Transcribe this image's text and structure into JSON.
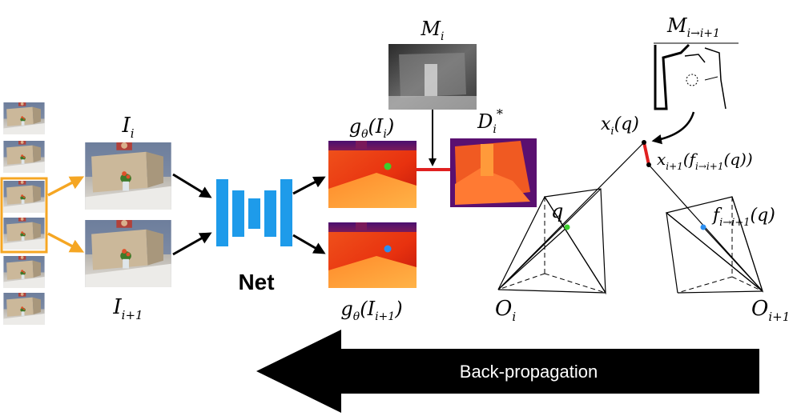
{
  "labels": {
    "I_i": {
      "base": "I",
      "sub": "i"
    },
    "I_i1": {
      "base": "I",
      "sub": "i+1"
    },
    "net": "Net",
    "g_i": {
      "func": "g",
      "sub": "θ",
      "open": "(",
      "arg": "I",
      "argsub": "i",
      "close": ")"
    },
    "g_i1": {
      "func": "g",
      "sub": "θ",
      "open": "(",
      "arg": "I",
      "argsub": "i+1",
      "close": ")"
    },
    "M_i": {
      "base": "M",
      "sub": "i"
    },
    "D_i": {
      "base": "D",
      "sub": "i",
      "sup": "*"
    },
    "M_ii": {
      "base": "M",
      "sub": "i→i+1"
    },
    "x_i": {
      "base": "x",
      "sub": "i",
      "rest": "(q)"
    },
    "x_i1": {
      "base": "x",
      "sub": "i+1",
      "open": "(",
      "f": "f",
      "fsub": "i→i+1",
      "rest": "(q))"
    },
    "q": "q",
    "f_q": {
      "base": "f",
      "sub": "i→i+1",
      "rest": "(q)"
    },
    "O_i": {
      "base": "O",
      "sub": "i"
    },
    "O_i1": {
      "base": "O",
      "sub": "i+1"
    },
    "backprop": "Back-propagation"
  },
  "colors": {
    "network": "#1e9bea",
    "selection": "#f5a623",
    "loss": "#e02020",
    "point_q": "#3ccf2e",
    "point_f": "#2b8ef0"
  }
}
